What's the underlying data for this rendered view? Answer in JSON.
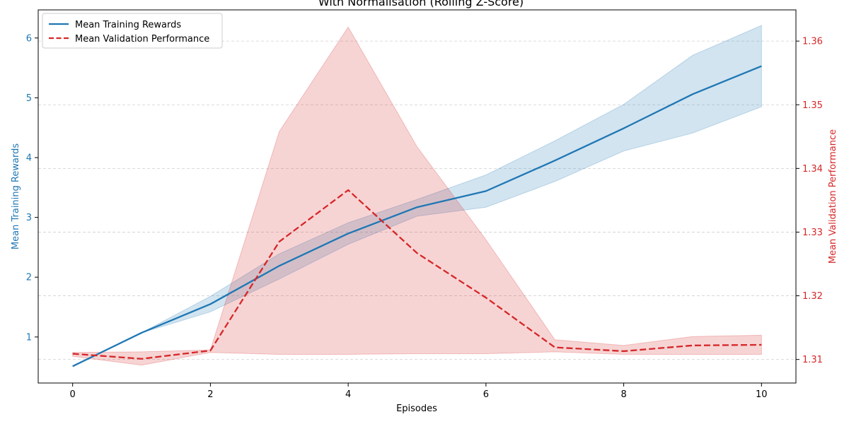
{
  "chart_data": {
    "type": "line",
    "title": "With Normalisation (Rolling Z-Score)",
    "xlabel": "Episodes",
    "ylabel_left": "Mean Training Rewards",
    "ylabel_right": "Mean Validation Performance",
    "xlim": [
      -0.5,
      10.5
    ],
    "ylim_left": [
      0.23,
      6.47
    ],
    "ylim_right": [
      1.3063,
      1.3649
    ],
    "x_ticks": [
      0,
      2,
      4,
      6,
      8,
      10
    ],
    "y_ticks_left": [
      1,
      2,
      3,
      4,
      5,
      6
    ],
    "y_ticks_right": [
      1.31,
      1.32,
      1.33,
      1.34,
      1.35,
      1.36
    ],
    "grid": true,
    "legend_position": "top-left",
    "series": [
      {
        "name": "Mean Training Rewards",
        "axis": "left",
        "color": "#1f77b4",
        "style": "solid",
        "x": [
          0,
          1,
          2,
          3,
          4,
          5,
          6,
          7,
          8,
          9,
          10
        ],
        "y": [
          0.51,
          1.07,
          1.55,
          2.19,
          2.73,
          3.17,
          3.44,
          3.95,
          4.49,
          5.06,
          5.53
        ],
        "lower": [
          0.51,
          1.07,
          1.42,
          1.97,
          2.55,
          3.02,
          3.17,
          3.6,
          4.11,
          4.41,
          4.85
        ],
        "upper": [
          0.51,
          1.07,
          1.68,
          2.39,
          2.91,
          3.3,
          3.71,
          4.28,
          4.89,
          5.71,
          6.21
        ]
      },
      {
        "name": "Mean Validation Performance",
        "axis": "right",
        "color": "#d62728",
        "style": "dashed",
        "x": [
          0,
          1,
          2,
          3,
          4,
          5,
          6,
          7,
          8,
          9,
          10
        ],
        "y": [
          1.3109,
          1.3101,
          1.3114,
          1.3285,
          1.3366,
          1.3267,
          1.3197,
          1.3119,
          1.3113,
          1.3122,
          1.3123
        ],
        "lower": [
          1.3105,
          1.3091,
          1.3111,
          1.3108,
          1.3108,
          1.3109,
          1.3109,
          1.3112,
          1.3108,
          1.3108,
          1.3108
        ],
        "upper": [
          1.3111,
          1.3112,
          1.3115,
          1.3458,
          1.3622,
          1.3434,
          1.3288,
          1.3131,
          1.3122,
          1.3136,
          1.3138
        ]
      }
    ]
  }
}
